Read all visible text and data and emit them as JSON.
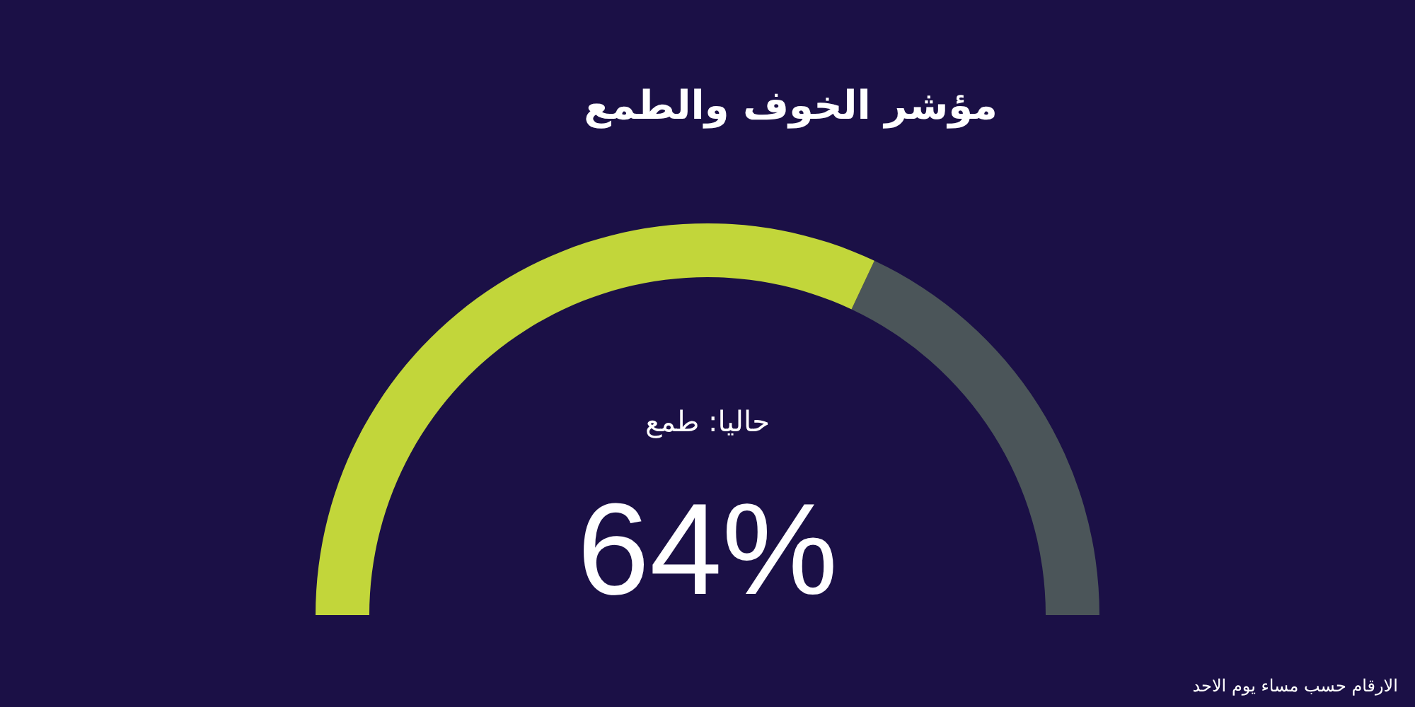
{
  "chart_data": {
    "type": "donut",
    "title": "مؤشر الخوف والطمع",
    "subtitle": "حاليا: طمع",
    "categories": [
      null,
      null
    ],
    "values": [
      64,
      36
    ],
    "colors": [
      "#c2d63a",
      "#4b5559"
    ],
    "value_labels": [
      "64%",
      null
    ],
    "annotations": [
      "الارقام حسب مساء يوم الاحد"
    ]
  }
}
